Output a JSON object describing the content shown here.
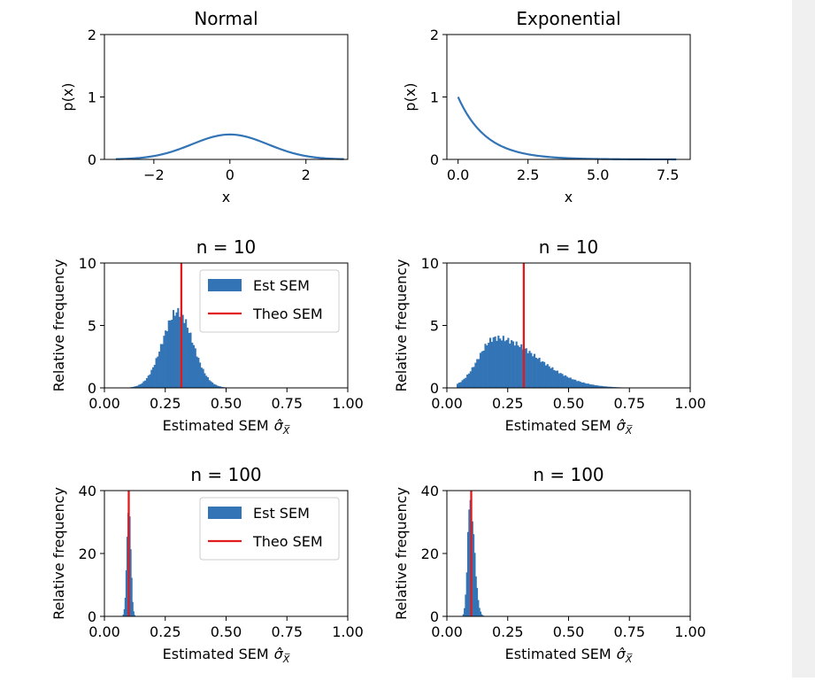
{
  "figure": {
    "colors": {
      "dist": "#3274b5",
      "hist": "#3274b5",
      "theo": "#e31a1c",
      "axis": "#000000",
      "background": "#ffffff"
    }
  },
  "chart_data": [
    {
      "type": "line",
      "title": "Normal",
      "xlabel": "x",
      "ylabel": "p(x)",
      "xlim": [
        -3.3,
        3.1
      ],
      "ylim": [
        0,
        2
      ],
      "xticks": [
        -2,
        0,
        2
      ],
      "xtick_labels": [
        "−2",
        "0",
        "2"
      ],
      "yticks": [
        0,
        1,
        2
      ],
      "ytick_labels": [
        "0",
        "1",
        "2"
      ],
      "grid": false,
      "series": [
        {
          "function": "normal_pdf",
          "x_range": [
            -3,
            3
          ],
          "color": "#3274b5"
        }
      ]
    },
    {
      "type": "line",
      "title": "Exponential",
      "xlabel": "x",
      "ylabel": "p(x)",
      "xlim": [
        -0.4,
        8.3
      ],
      "ylim": [
        0,
        2
      ],
      "xticks": [
        0,
        2.5,
        5,
        7.5
      ],
      "xtick_labels": [
        "0.0",
        "2.5",
        "5.0",
        "7.5"
      ],
      "yticks": [
        0,
        1,
        2
      ],
      "ytick_labels": [
        "0",
        "1",
        "2"
      ],
      "grid": false,
      "series": [
        {
          "function": "exponential_pdf",
          "x_range": [
            0,
            7.8
          ],
          "color": "#3274b5"
        }
      ]
    },
    {
      "type": "bar",
      "title": "n = 10",
      "xlabel": "Estimated SEM",
      "xlabel_math": "σ̂",
      "xlabel_sub": "X̅",
      "ylabel": "Relative frequency",
      "xlim": [
        0,
        1
      ],
      "ylim": [
        0,
        10
      ],
      "xticks": [
        0,
        0.25,
        0.5,
        0.75,
        1
      ],
      "xtick_labels": [
        "0.00",
        "0.25",
        "0.50",
        "0.75",
        "1.00"
      ],
      "yticks": [
        0,
        5,
        10
      ],
      "ytick_labels": [
        "0",
        "5",
        "10"
      ],
      "grid": false,
      "legend": {
        "placement": "top-right",
        "entries": [
          "Est SEM",
          "Theo SEM"
        ]
      },
      "histogram": {
        "name": "Est SEM",
        "distribution": "gaussian",
        "center": 0.3,
        "spread": 0.062,
        "peak": 6.1,
        "x_range": [
          0.1,
          0.55
        ],
        "bins": 70
      },
      "reference_line": {
        "name": "Theo SEM",
        "x": 0.316
      }
    },
    {
      "type": "bar",
      "title": "n = 10",
      "xlabel": "Estimated SEM",
      "xlabel_math": "σ̂",
      "xlabel_sub": "X̅",
      "ylabel": "Relative frequency",
      "xlim": [
        0,
        1
      ],
      "ylim": [
        0,
        10
      ],
      "xticks": [
        0,
        0.25,
        0.5,
        0.75,
        1
      ],
      "xtick_labels": [
        "0.00",
        "0.25",
        "0.50",
        "0.75",
        "1.00"
      ],
      "yticks": [
        0,
        5,
        10
      ],
      "ytick_labels": [
        "0",
        "5",
        "10"
      ],
      "grid": false,
      "histogram": {
        "name": "Est SEM",
        "distribution": "skewed",
        "center": 0.2,
        "spread_left": 0.07,
        "spread_right": 0.17,
        "peak": 4.0,
        "x_range": [
          0.04,
          0.78
        ],
        "bins": 110
      },
      "reference_line": {
        "name": "Theo SEM",
        "x": 0.316
      }
    },
    {
      "type": "bar",
      "title": "n = 100",
      "xlabel": "Estimated SEM",
      "xlabel_math": "σ̂",
      "xlabel_sub": "X̅",
      "ylabel": "Relative frequency",
      "xlim": [
        0,
        1
      ],
      "ylim": [
        0,
        40
      ],
      "xticks": [
        0,
        0.25,
        0.5,
        0.75,
        1
      ],
      "xtick_labels": [
        "0.00",
        "0.25",
        "0.50",
        "0.75",
        "1.00"
      ],
      "yticks": [
        0,
        20,
        40
      ],
      "ytick_labels": [
        "0",
        "20",
        "40"
      ],
      "grid": false,
      "legend": {
        "placement": "top-right",
        "entries": [
          "Est SEM",
          "Theo SEM"
        ]
      },
      "histogram": {
        "name": "Est SEM",
        "distribution": "gaussian",
        "center": 0.1,
        "spread": 0.008,
        "peak": 38,
        "x_range": [
          0.075,
          0.13
        ],
        "bins": 14
      },
      "reference_line": {
        "name": "Theo SEM",
        "x": 0.1
      }
    },
    {
      "type": "bar",
      "title": "n = 100",
      "xlabel": "Estimated SEM",
      "xlabel_math": "σ̂",
      "xlabel_sub": "X̅",
      "ylabel": "Relative frequency",
      "xlim": [
        0,
        1
      ],
      "ylim": [
        0,
        40
      ],
      "xticks": [
        0,
        0.25,
        0.5,
        0.75,
        1
      ],
      "xtick_labels": [
        "0.00",
        "0.25",
        "0.50",
        "0.75",
        "1.00"
      ],
      "yticks": [
        0,
        20,
        40
      ],
      "ytick_labels": [
        "0",
        "20",
        "40"
      ],
      "grid": false,
      "histogram": {
        "name": "Est SEM",
        "distribution": "skewed",
        "center": 0.095,
        "spread_left": 0.01,
        "spread_right": 0.017,
        "peak": 38,
        "x_range": [
          0.055,
          0.16
        ],
        "bins": 22
      },
      "reference_line": {
        "name": "Theo SEM",
        "x": 0.1
      }
    }
  ]
}
